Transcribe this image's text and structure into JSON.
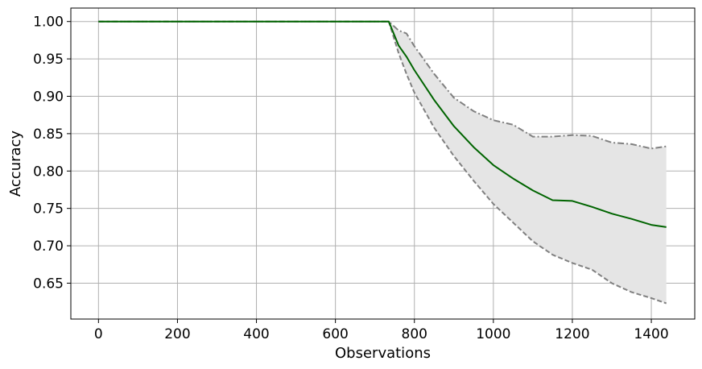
{
  "chart_data": {
    "type": "line",
    "title": "",
    "xlabel": "Observations",
    "ylabel": "Accuracy",
    "xlim": [
      -70,
      1510
    ],
    "ylim": [
      0.602,
      1.018
    ],
    "xticks": [
      0,
      200,
      400,
      600,
      800,
      1000,
      1200,
      1400
    ],
    "xtick_labels": [
      "0",
      "200",
      "400",
      "600",
      "800",
      "1000",
      "1200",
      "1400"
    ],
    "yticks": [
      0.65,
      0.7,
      0.75,
      0.8,
      0.85,
      0.9,
      0.95,
      1.0
    ],
    "ytick_labels": [
      "0.65",
      "0.70",
      "0.75",
      "0.80",
      "0.85",
      "0.90",
      "0.95",
      "1.00"
    ],
    "grid": true,
    "legend": false,
    "x": [
      0,
      735,
      760,
      780,
      800,
      850,
      900,
      950,
      1000,
      1050,
      1100,
      1150,
      1200,
      1250,
      1300,
      1350,
      1400,
      1438
    ],
    "series": [
      {
        "role": "mean",
        "color": "#006400",
        "style": "solid",
        "values": [
          1.0,
          1.0,
          0.968,
          0.953,
          0.935,
          0.895,
          0.86,
          0.832,
          0.808,
          0.79,
          0.774,
          0.761,
          0.76,
          0.752,
          0.743,
          0.736,
          0.728,
          0.725
        ]
      },
      {
        "role": "upper",
        "color": "#808080",
        "style": "dashdot",
        "values": [
          1.0,
          1.0,
          0.988,
          0.984,
          0.967,
          0.93,
          0.898,
          0.88,
          0.868,
          0.862,
          0.846,
          0.846,
          0.848,
          0.847,
          0.838,
          0.836,
          0.83,
          0.833
        ]
      },
      {
        "role": "lower",
        "color": "#808080",
        "style": "dashed",
        "values": [
          1.0,
          1.0,
          0.958,
          0.93,
          0.905,
          0.858,
          0.82,
          0.787,
          0.756,
          0.731,
          0.706,
          0.688,
          0.677,
          0.668,
          0.65,
          0.638,
          0.63,
          0.623
        ]
      }
    ],
    "band": {
      "between": [
        "lower",
        "upper"
      ],
      "color": "#e5e5e5"
    }
  }
}
